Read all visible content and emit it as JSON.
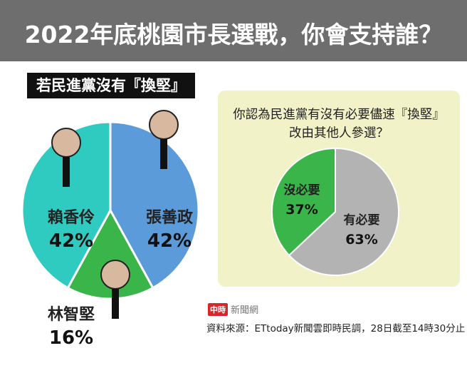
{
  "title": "2022年底桃園市長選戰，你會支持誰？",
  "chart_data": [
    {
      "type": "pie",
      "title": "若民進黨沒有『換堅』",
      "slices": [
        {
          "label": "張善政",
          "value": 42,
          "display": "42%",
          "color": "#5b9bd9"
        },
        {
          "label": "林智堅",
          "value": 16,
          "display": "16%",
          "color": "#3ab54a"
        },
        {
          "label": "賴香伶",
          "value": 42,
          "display": "42%",
          "color": "#2fcbc1"
        }
      ]
    },
    {
      "type": "pie",
      "title": "你認為民進黨有沒有必要儘速『換堅』改由其他人參選？",
      "title_lines": [
        "你認為民進黨有沒有必要儘速『換堅』",
        "改由其他人參選？"
      ],
      "slices": [
        {
          "label": "有必要",
          "value": 63,
          "display": "63%",
          "color": "#b3b3b3"
        },
        {
          "label": "沒必要",
          "value": 37,
          "display": "37%",
          "color": "#3ab54a"
        }
      ]
    }
  ],
  "logo": {
    "red": "中時",
    "gray": "新聞網"
  },
  "source": "資料來源：ETtoday新聞雲即時民調，28日截至14時30分止"
}
